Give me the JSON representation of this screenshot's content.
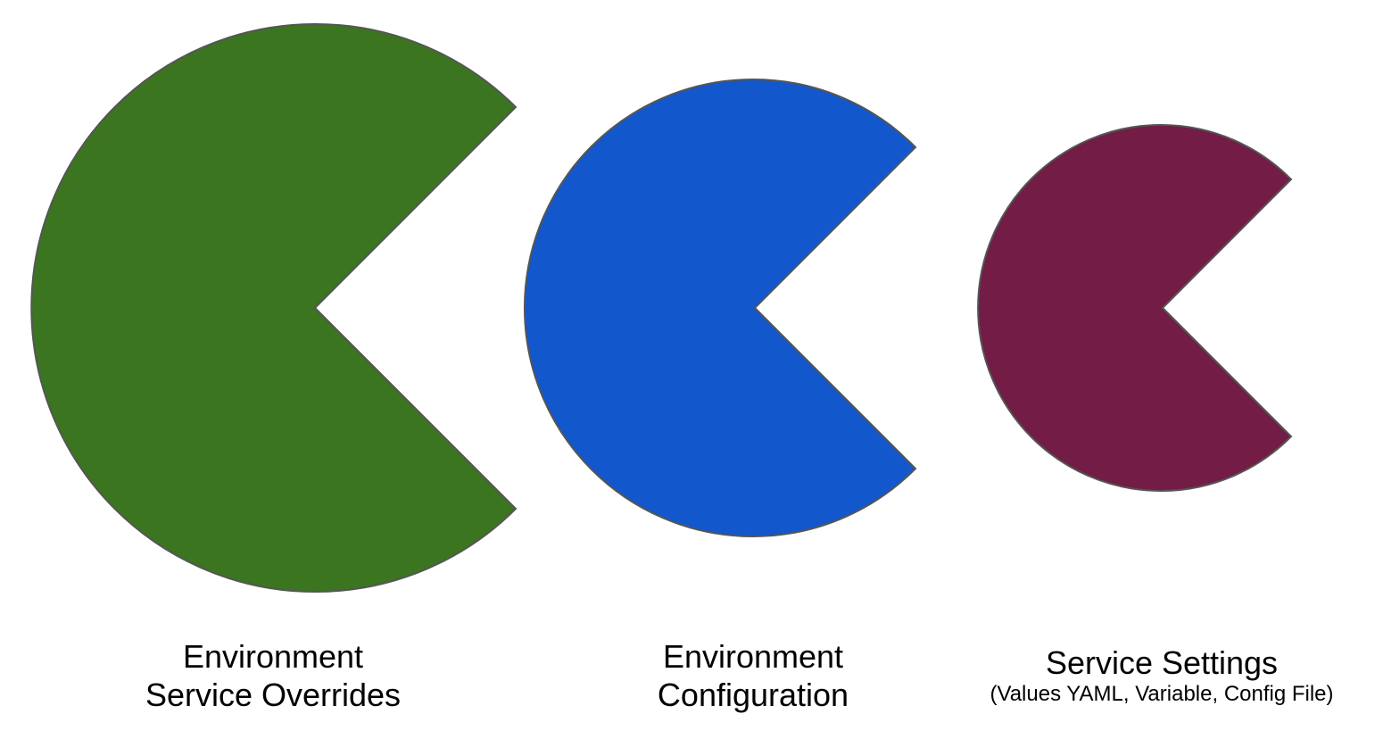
{
  "diagram": {
    "shapes": [
      {
        "id": "overrides",
        "color": "#3b7520",
        "label_lines": [
          "Environment",
          "Service Overrides"
        ]
      },
      {
        "id": "config",
        "color": "#1257cc",
        "label_lines": [
          "Environment",
          "Configuration"
        ]
      },
      {
        "id": "settings",
        "color": "#721c46",
        "label_lines": [
          "Service Settings",
          "(Values YAML, Variable, Config File)"
        ]
      }
    ],
    "outline_color": "#555555"
  }
}
